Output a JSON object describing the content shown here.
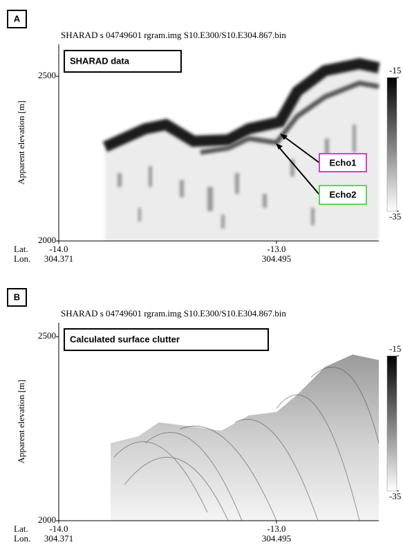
{
  "chart_data": [
    {
      "type": "radargram",
      "panel_label": "A",
      "title": "SHARAD  s  04749601  rgram.img   S10.E300/S10.E304.867.bin",
      "annotation": "SHARAD data",
      "ylabel": "Apparent elevation [m]",
      "ylim": [
        2000,
        2597
      ],
      "yticks": [
        2000,
        2500
      ],
      "xlim": [
        -14.0,
        -12.53
      ],
      "xticks": [
        {
          "value": -14.0,
          "label": "-14.0"
        },
        {
          "value": -13.0,
          "label": "-13.0"
        }
      ],
      "x_labels": [
        "Lat.",
        "Lon."
      ],
      "lon_ticks": [
        304.371,
        304.495
      ],
      "clim": [
        -35,
        -15
      ],
      "cticks": [
        -15,
        -35
      ],
      "echoes": [
        "Echo1",
        "Echo2"
      ]
    },
    {
      "type": "radargram",
      "panel_label": "B",
      "title": "SHARAD  s  04749601  rgram.img   S10.E300/S10.E304.867.bin",
      "annotation": "Calculated surface clutter",
      "ylabel": "Apparent elevation [m]",
      "ylim": [
        2000,
        2538
      ],
      "yticks": [
        2000,
        2500
      ],
      "xlim": [
        -14.0,
        -12.53
      ],
      "xticks": [
        {
          "value": -14.0,
          "label": "-14.0"
        },
        {
          "value": -13.0,
          "label": "-13.0"
        }
      ],
      "x_labels": [
        "Lat.",
        "Lon."
      ],
      "lon_ticks": [
        304.371,
        304.495
      ],
      "clim": [
        -35,
        -15
      ],
      "cticks": [
        -15,
        -35
      ]
    }
  ]
}
